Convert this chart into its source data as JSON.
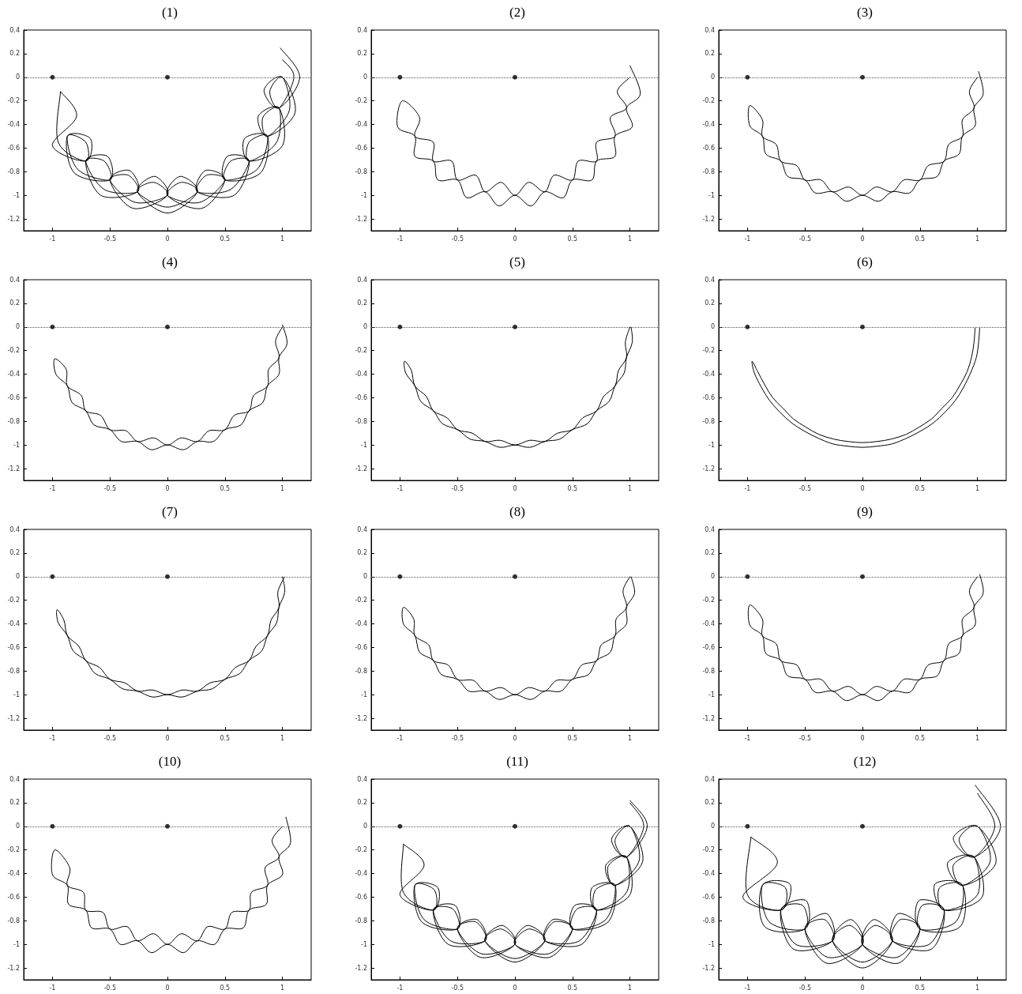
{
  "chart_data": [
    {
      "type": "line",
      "title": "(1)",
      "xlim": [
        -1.25,
        1.25
      ],
      "ylim": [
        -1.3,
        0.4
      ],
      "xticks": [
        -1,
        -0.5,
        0,
        0.5,
        1
      ],
      "yticks": [
        -1.2,
        -1,
        -0.8,
        -0.6,
        -0.4,
        -0.2,
        0,
        0.2,
        0.4
      ],
      "ref_lines": [
        {
          "axis": "y",
          "value": 0,
          "line_style": "dotted",
          "color": "#555555"
        }
      ],
      "series": [
        {
          "color": "#000000",
          "marker": "none",
          "line_style": "solid",
          "x": [
            0.98,
            1.15,
            0.97,
            0.84,
            1,
            1.11,
            0.87,
            0.79,
            0.97,
            1,
            0.71,
            0.67,
            0.87,
            0.81,
            0.5,
            0.52,
            0.71,
            0.58,
            0.26,
            0.33,
            0.5,
            0.3,
            0,
            0.11,
            0.26,
            0,
            -0.26,
            -0.11,
            0,
            -0.3,
            -0.5,
            -0.33,
            -0.26,
            -0.58,
            -0.71,
            -0.52,
            -0.5,
            -0.81,
            -0.87,
            -0.67,
            -0.71,
            -1,
            -0.79,
            -0.93
          ],
          "values": [
            0.25,
            0,
            -0.26,
            -0.11,
            0,
            -0.3,
            -0.5,
            -0.33,
            -0.26,
            -0.58,
            -0.71,
            -0.52,
            -0.5,
            -0.81,
            -0.87,
            -0.67,
            -0.71,
            -1,
            -0.97,
            -0.79,
            -0.87,
            -1.11,
            -1,
            -0.84,
            -0.97,
            -1.15,
            -0.97,
            -0.84,
            -1,
            -1.11,
            -0.87,
            -0.79,
            -0.97,
            -1,
            -0.71,
            -0.67,
            -0.87,
            -0.81,
            -0.5,
            -0.52,
            -0.71,
            -0.58,
            -0.33,
            -0.12
          ]
        },
        {
          "color": "#000000",
          "marker": "none",
          "line_style": "solid",
          "x": [
            -0.93,
            -0.95,
            -0.71,
            -0.71,
            -0.87,
            -0.78,
            -0.5,
            -0.55,
            -0.71,
            -0.55,
            -0.26,
            -0.34,
            -0.5,
            -0.28,
            0,
            -0.12,
            -0.26,
            0,
            0.26,
            0.12,
            0,
            0.28,
            0.5,
            0.34,
            0.26,
            0.55,
            0.71,
            0.55,
            0.5,
            0.78,
            0.87,
            0.71,
            0.71,
            0.95,
            0.97,
            0.83,
            0.87,
            1.06,
            1,
            0.89,
            0.97,
            1.1,
            1.0
          ],
          "values": [
            -0.12,
            -0.55,
            -0.71,
            -0.55,
            -0.5,
            -0.78,
            -0.87,
            -0.71,
            -0.71,
            -0.95,
            -0.97,
            -0.83,
            -0.87,
            -1.06,
            -1,
            -0.89,
            -0.97,
            -1.1,
            -0.97,
            -0.89,
            -1,
            -1.06,
            -0.87,
            -0.83,
            -0.97,
            -0.95,
            -0.71,
            -0.71,
            -0.87,
            -0.78,
            -0.5,
            -0.55,
            -0.71,
            -0.55,
            -0.26,
            -0.34,
            -0.5,
            -0.28,
            0,
            -0.12,
            -0.26,
            0,
            0.15
          ]
        },
        {
          "type": "scatter",
          "color": "#000000",
          "marker": "circle",
          "x": [
            -1,
            0
          ],
          "values": [
            0,
            0
          ]
        }
      ]
    },
    {
      "type": "line",
      "title": "(2)",
      "xlim": [
        -1.25,
        1.25
      ],
      "ylim": [
        -1.3,
        0.4
      ],
      "xticks": [
        -1,
        -0.5,
        0,
        0.5,
        1
      ],
      "yticks": [
        -1.2,
        -1,
        -0.8,
        -0.6,
        -0.4,
        -0.2,
        0,
        0.2,
        0.4
      ],
      "ref_lines": [
        {
          "axis": "y",
          "value": 0,
          "line_style": "dotted",
          "color": "#555555"
        }
      ],
      "series": [
        {
          "color": "#000000",
          "marker": "none",
          "line_style": "solid",
          "x": [
            1.0,
            1.09,
            0.97,
            1.02,
            0.87,
            0.87,
            0.71,
            0.67,
            0.5,
            0.42,
            0.26,
            0.14,
            0,
            -0.14,
            -0.26,
            -0.42,
            -0.5,
            -0.67,
            -0.71,
            -0.87,
            -0.87,
            -1.02,
            -0.98,
            -0.83,
            -0.87,
            -0.71,
            -0.71,
            -0.55,
            -0.5,
            -0.34,
            -0.26,
            -0.12,
            0,
            0.12,
            0.26,
            0.34,
            0.5,
            0.55,
            0.71,
            0.71,
            0.87,
            0.83,
            0.97,
            0.89,
            1
          ],
          "values": [
            0.1,
            -0.14,
            -0.26,
            -0.42,
            -0.5,
            -0.67,
            -0.71,
            -0.87,
            -0.87,
            -1.02,
            -0.97,
            -1.09,
            -1,
            -1.09,
            -0.97,
            -1.02,
            -0.87,
            -0.87,
            -0.71,
            -0.67,
            -0.5,
            -0.42,
            -0.2,
            -0.34,
            -0.5,
            -0.55,
            -0.71,
            -0.71,
            -0.87,
            -0.83,
            -0.97,
            -0.89,
            -1,
            -0.89,
            -0.97,
            -0.83,
            -0.87,
            -0.71,
            -0.71,
            -0.55,
            -0.5,
            -0.34,
            -0.26,
            -0.12,
            0
          ]
        },
        {
          "type": "scatter",
          "color": "#000000",
          "marker": "circle",
          "x": [
            -1,
            0
          ],
          "values": [
            0,
            0
          ]
        }
      ]
    },
    {
      "type": "line",
      "title": "(3)",
      "xlim": [
        -1.25,
        1.25
      ],
      "ylim": [
        -1.3,
        0.4
      ],
      "xticks": [
        -1,
        -0.5,
        0,
        0.5,
        1
      ],
      "yticks": [
        -1.2,
        -1,
        -0.8,
        -0.6,
        -0.4,
        -0.2,
        0,
        0.2,
        0.4
      ],
      "ref_lines": [
        {
          "axis": "y",
          "value": 0,
          "line_style": "dotted",
          "color": "#555555"
        }
      ],
      "series": [
        {
          "color": "#000000",
          "marker": "none",
          "line_style": "solid",
          "x": [
            1.01,
            1.05,
            0.97,
            0.98,
            0.87,
            0.84,
            0.71,
            0.65,
            0.5,
            0.41,
            0.26,
            0.14,
            0,
            -0.14,
            -0.26,
            -0.41,
            -0.5,
            -0.65,
            -0.71,
            -0.84,
            -0.87,
            -0.98,
            -0.98,
            -0.87,
            -0.87,
            -0.75,
            -0.71,
            -0.57,
            -0.5,
            -0.36,
            -0.26,
            -0.12,
            0,
            0.12,
            0.26,
            0.36,
            0.5,
            0.57,
            0.71,
            0.75,
            0.87,
            0.87,
            0.97,
            0.93,
            1
          ],
          "values": [
            0.05,
            -0.14,
            -0.26,
            -0.41,
            -0.5,
            -0.65,
            -0.71,
            -0.84,
            -0.87,
            -0.98,
            -0.97,
            -1.05,
            -1,
            -1.05,
            -0.97,
            -0.98,
            -0.87,
            -0.84,
            -0.71,
            -0.65,
            -0.5,
            -0.41,
            -0.24,
            -0.36,
            -0.5,
            -0.57,
            -0.71,
            -0.75,
            -0.87,
            -0.87,
            -0.97,
            -0.93,
            -1,
            -0.93,
            -0.97,
            -0.87,
            -0.87,
            -0.75,
            -0.71,
            -0.57,
            -0.5,
            -0.36,
            -0.26,
            -0.12,
            0
          ]
        },
        {
          "type": "scatter",
          "color": "#000000",
          "marker": "circle",
          "x": [
            -1,
            0
          ],
          "values": [
            0,
            0
          ]
        }
      ]
    },
    {
      "type": "line",
      "title": "(4)",
      "xlim": [
        -1.25,
        1.25
      ],
      "ylim": [
        -1.3,
        0.4
      ],
      "xticks": [
        -1,
        -0.5,
        0,
        0.5,
        1
      ],
      "yticks": [
        -1.2,
        -1,
        -0.8,
        -0.6,
        -0.4,
        -0.2,
        0,
        0.2,
        0.4
      ],
      "ref_lines": [
        {
          "axis": "y",
          "value": 0,
          "line_style": "dotted",
          "color": "#555555"
        }
      ],
      "series": [
        {
          "color": "#000000",
          "marker": "none",
          "line_style": "solid",
          "x": [
            1.0,
            1.04,
            0.97,
            0.97,
            0.87,
            0.83,
            0.71,
            0.64,
            0.5,
            0.4,
            0.26,
            0.14,
            0,
            -0.14,
            -0.26,
            -0.4,
            -0.5,
            -0.64,
            -0.71,
            -0.83,
            -0.87,
            -0.97,
            -0.98,
            -0.88,
            -0.87,
            -0.75,
            -0.71,
            -0.58,
            -0.5,
            -0.36,
            -0.26,
            -0.12,
            0,
            0.12,
            0.26,
            0.36,
            0.5,
            0.58,
            0.71,
            0.75,
            0.87,
            0.88,
            0.97,
            0.94,
            1
          ],
          "values": [
            0.02,
            -0.14,
            -0.26,
            -0.4,
            -0.5,
            -0.64,
            -0.71,
            -0.83,
            -0.87,
            -0.97,
            -0.97,
            -1.04,
            -1,
            -1.04,
            -0.97,
            -0.97,
            -0.87,
            -0.83,
            -0.71,
            -0.64,
            -0.5,
            -0.4,
            -0.27,
            -0.36,
            -0.5,
            -0.58,
            -0.71,
            -0.75,
            -0.87,
            -0.88,
            -0.97,
            -0.94,
            -1,
            -0.94,
            -0.97,
            -0.88,
            -0.87,
            -0.75,
            -0.71,
            -0.58,
            -0.5,
            -0.36,
            -0.26,
            -0.12,
            0
          ]
        },
        {
          "type": "scatter",
          "color": "#000000",
          "marker": "circle",
          "x": [
            -1,
            0
          ],
          "values": [
            0,
            0
          ]
        }
      ]
    },
    {
      "type": "line",
      "title": "(5)",
      "xlim": [
        -1.25,
        1.25
      ],
      "ylim": [
        -1.3,
        0.4
      ],
      "xticks": [
        -1,
        -0.5,
        0,
        0.5,
        1
      ],
      "yticks": [
        -1.2,
        -1,
        -0.8,
        -0.6,
        -0.4,
        -0.2,
        0,
        0.2,
        0.4
      ],
      "ref_lines": [
        {
          "axis": "y",
          "value": 0,
          "line_style": "dotted",
          "color": "#555555"
        }
      ],
      "series": [
        {
          "color": "#000000",
          "marker": "none",
          "line_style": "solid",
          "x": [
            1.01,
            1.02,
            0.97,
            0.95,
            0.87,
            0.82,
            0.71,
            0.63,
            0.5,
            0.39,
            0.26,
            0.13,
            0,
            -0.13,
            -0.26,
            -0.39,
            -0.5,
            -0.63,
            -0.71,
            -0.82,
            -0.87,
            -0.95,
            -0.96,
            -0.9,
            -0.87,
            -0.77,
            -0.71,
            -0.59,
            -0.5,
            -0.37,
            -0.26,
            -0.13,
            0,
            0.13,
            0.26,
            0.37,
            0.5,
            0.59,
            0.71,
            0.77,
            0.87,
            0.9,
            0.97,
            0.96,
            1
          ],
          "values": [
            0,
            -0.13,
            -0.26,
            -0.39,
            -0.5,
            -0.63,
            -0.71,
            -0.82,
            -0.87,
            -0.95,
            -0.97,
            -1.02,
            -1,
            -1.02,
            -0.97,
            -0.95,
            -0.87,
            -0.82,
            -0.71,
            -0.63,
            -0.5,
            -0.39,
            -0.29,
            -0.37,
            -0.5,
            -0.59,
            -0.71,
            -0.77,
            -0.87,
            -0.9,
            -0.97,
            -0.96,
            -1,
            -0.96,
            -0.97,
            -0.9,
            -0.87,
            -0.77,
            -0.71,
            -0.59,
            -0.5,
            -0.37,
            -0.26,
            -0.13,
            0
          ]
        },
        {
          "type": "scatter",
          "color": "#000000",
          "marker": "circle",
          "x": [
            -1,
            0
          ],
          "values": [
            0,
            0
          ]
        }
      ]
    },
    {
      "type": "line",
      "title": "(6)",
      "xlim": [
        -1.25,
        1.25
      ],
      "ylim": [
        -1.3,
        0.4
      ],
      "xticks": [
        -1,
        -0.5,
        0,
        0.5,
        1
      ],
      "yticks": [
        -1.2,
        -1,
        -0.8,
        -0.6,
        -0.4,
        -0.2,
        0,
        0.2,
        0.4
      ],
      "ref_lines": [
        {
          "axis": "y",
          "value": 0,
          "line_style": "dotted",
          "color": "#555555"
        }
      ],
      "series": [
        {
          "color": "#000000",
          "marker": "none",
          "line_style": "solid",
          "x": [
            0.98,
            0.97,
            0.95,
            0.91,
            0.85,
            0.78,
            0.69,
            0.6,
            0.49,
            0.38,
            0.25,
            0.13,
            0,
            -0.13,
            -0.25,
            -0.38,
            -0.49,
            -0.6,
            -0.69,
            -0.78,
            -0.85,
            -0.91,
            -0.96,
            -0.94,
            -0.88,
            -0.81,
            -0.72,
            -0.62,
            -0.51,
            -0.39,
            -0.26,
            -0.13,
            0,
            0.13,
            0.26,
            0.39,
            0.51,
            0.62,
            0.72,
            0.81,
            0.88,
            0.94,
            0.99,
            1.01,
            1.02
          ],
          "values": [
            0,
            -0.13,
            -0.25,
            -0.38,
            -0.49,
            -0.6,
            -0.69,
            -0.78,
            -0.85,
            -0.91,
            -0.95,
            -0.97,
            -0.98,
            -0.97,
            -0.95,
            -0.91,
            -0.85,
            -0.78,
            -0.69,
            -0.6,
            -0.49,
            -0.38,
            -0.29,
            -0.39,
            -0.51,
            -0.62,
            -0.72,
            -0.81,
            -0.88,
            -0.94,
            -0.99,
            -1.01,
            -1.02,
            -1.01,
            -0.99,
            -0.94,
            -0.88,
            -0.81,
            -0.72,
            -0.62,
            -0.51,
            -0.39,
            -0.26,
            -0.13,
            0
          ]
        },
        {
          "type": "scatter",
          "color": "#000000",
          "marker": "circle",
          "x": [
            -1,
            0
          ],
          "values": [
            0,
            0
          ]
        }
      ]
    },
    {
      "type": "line",
      "title": "(7)",
      "xlim": [
        -1.25,
        1.25
      ],
      "ylim": [
        -1.3,
        0.4
      ],
      "xticks": [
        -1,
        -0.5,
        0,
        0.5,
        1
      ],
      "yticks": [
        -1.2,
        -1,
        -0.8,
        -0.6,
        -0.4,
        -0.2,
        0,
        0.2,
        0.4
      ],
      "ref_lines": [
        {
          "axis": "y",
          "value": 0,
          "line_style": "dotted",
          "color": "#555555"
        }
      ],
      "series": [
        {
          "color": "#000000",
          "marker": "none",
          "line_style": "solid",
          "x": [
            1.02,
            0.96,
            0.97,
            0.9,
            0.87,
            0.77,
            0.71,
            0.59,
            0.5,
            0.37,
            0.26,
            0.13,
            0,
            -0.13,
            -0.26,
            -0.37,
            -0.5,
            -0.59,
            -0.71,
            -0.77,
            -0.87,
            -0.9,
            -0.96,
            -0.95,
            -0.87,
            -0.82,
            -0.71,
            -0.63,
            -0.5,
            -0.39,
            -0.26,
            -0.13,
            0,
            0.13,
            0.26,
            0.39,
            0.5,
            0.63,
            0.71,
            0.82,
            0.87,
            0.95,
            0.97,
            1.02,
            1
          ],
          "values": [
            0,
            -0.13,
            -0.26,
            -0.37,
            -0.5,
            -0.59,
            -0.71,
            -0.77,
            -0.87,
            -0.9,
            -0.97,
            -0.96,
            -1,
            -0.96,
            -0.97,
            -0.9,
            -0.87,
            -0.77,
            -0.71,
            -0.59,
            -0.5,
            -0.37,
            -0.28,
            -0.39,
            -0.5,
            -0.63,
            -0.71,
            -0.82,
            -0.87,
            -0.95,
            -0.97,
            -1.02,
            -1,
            -1.02,
            -0.97,
            -0.95,
            -0.87,
            -0.82,
            -0.71,
            -0.63,
            -0.5,
            -0.39,
            -0.26,
            -0.13,
            0
          ]
        },
        {
          "type": "scatter",
          "color": "#000000",
          "marker": "circle",
          "x": [
            -1,
            0
          ],
          "values": [
            0,
            0
          ]
        }
      ]
    },
    {
      "type": "line",
      "title": "(8)",
      "xlim": [
        -1.25,
        1.25
      ],
      "ylim": [
        -1.3,
        0.4
      ],
      "xticks": [
        -1,
        -0.5,
        0,
        0.5,
        1
      ],
      "yticks": [
        -1.2,
        -1,
        -0.8,
        -0.6,
        -0.4,
        -0.2,
        0,
        0.2,
        0.4
      ],
      "ref_lines": [
        {
          "axis": "y",
          "value": 0,
          "line_style": "dotted",
          "color": "#555555"
        }
      ],
      "series": [
        {
          "color": "#000000",
          "marker": "none",
          "line_style": "solid",
          "x": [
            1.01,
            1.04,
            0.97,
            0.97,
            0.87,
            0.83,
            0.71,
            0.64,
            0.5,
            0.4,
            0.26,
            0.14,
            0,
            -0.14,
            -0.26,
            -0.4,
            -0.5,
            -0.64,
            -0.71,
            -0.83,
            -0.87,
            -0.97,
            -0.97,
            -0.88,
            -0.87,
            -0.75,
            -0.71,
            -0.58,
            -0.5,
            -0.36,
            -0.26,
            -0.12,
            0,
            0.12,
            0.26,
            0.36,
            0.5,
            0.58,
            0.71,
            0.75,
            0.87,
            0.88,
            0.97,
            0.94,
            1
          ],
          "values": [
            0,
            -0.14,
            -0.26,
            -0.4,
            -0.5,
            -0.64,
            -0.71,
            -0.83,
            -0.87,
            -0.97,
            -0.97,
            -1.04,
            -1,
            -1.04,
            -0.97,
            -0.97,
            -0.87,
            -0.83,
            -0.71,
            -0.64,
            -0.5,
            -0.4,
            -0.26,
            -0.36,
            -0.5,
            -0.58,
            -0.71,
            -0.75,
            -0.87,
            -0.88,
            -0.97,
            -0.94,
            -1,
            -0.94,
            -0.97,
            -0.88,
            -0.87,
            -0.75,
            -0.71,
            -0.58,
            -0.5,
            -0.36,
            -0.26,
            -0.12,
            0
          ]
        },
        {
          "type": "scatter",
          "color": "#000000",
          "marker": "circle",
          "x": [
            -1,
            0
          ],
          "values": [
            0,
            0
          ]
        }
      ]
    },
    {
      "type": "line",
      "title": "(9)",
      "xlim": [
        -1.25,
        1.25
      ],
      "ylim": [
        -1.3,
        0.4
      ],
      "xticks": [
        -1,
        -0.5,
        0,
        0.5,
        1
      ],
      "yticks": [
        -1.2,
        -1,
        -0.8,
        -0.6,
        -0.4,
        -0.2,
        0,
        0.2,
        0.4
      ],
      "ref_lines": [
        {
          "axis": "y",
          "value": 0,
          "line_style": "dotted",
          "color": "#555555"
        }
      ],
      "series": [
        {
          "color": "#000000",
          "marker": "none",
          "line_style": "solid",
          "x": [
            1.02,
            1.05,
            0.97,
            0.98,
            0.87,
            0.84,
            0.71,
            0.65,
            0.5,
            0.41,
            0.26,
            0.14,
            0,
            -0.14,
            -0.26,
            -0.41,
            -0.5,
            -0.65,
            -0.71,
            -0.84,
            -0.87,
            -0.98,
            -0.98,
            -0.87,
            -0.87,
            -0.75,
            -0.71,
            -0.57,
            -0.5,
            -0.36,
            -0.26,
            -0.12,
            0,
            0.12,
            0.26,
            0.36,
            0.5,
            0.57,
            0.71,
            0.75,
            0.87,
            0.87,
            0.97,
            0.93,
            1
          ],
          "values": [
            0.02,
            -0.14,
            -0.26,
            -0.41,
            -0.5,
            -0.65,
            -0.71,
            -0.84,
            -0.87,
            -0.98,
            -0.97,
            -1.05,
            -1,
            -1.05,
            -0.97,
            -0.98,
            -0.87,
            -0.84,
            -0.71,
            -0.65,
            -0.5,
            -0.41,
            -0.24,
            -0.36,
            -0.5,
            -0.57,
            -0.71,
            -0.75,
            -0.87,
            -0.87,
            -0.97,
            -0.93,
            -1,
            -0.93,
            -0.97,
            -0.87,
            -0.87,
            -0.75,
            -0.71,
            -0.57,
            -0.5,
            -0.36,
            -0.26,
            -0.12,
            0
          ]
        },
        {
          "type": "scatter",
          "color": "#000000",
          "marker": "circle",
          "x": [
            -1,
            0
          ],
          "values": [
            0,
            0
          ]
        }
      ]
    },
    {
      "type": "line",
      "title": "(10)",
      "xlim": [
        -1.25,
        1.25
      ],
      "ylim": [
        -1.3,
        0.4
      ],
      "xticks": [
        -1,
        -0.5,
        0,
        0.5,
        1
      ],
      "yticks": [
        -1.2,
        -1,
        -0.8,
        -0.6,
        -0.4,
        -0.2,
        0,
        0.2,
        0.4
      ],
      "ref_lines": [
        {
          "axis": "y",
          "value": 0,
          "line_style": "dotted",
          "color": "#555555"
        }
      ],
      "series": [
        {
          "color": "#000000",
          "marker": "none",
          "line_style": "solid",
          "x": [
            1.03,
            1.07,
            0.97,
            1.0,
            0.87,
            0.86,
            0.71,
            0.66,
            0.5,
            0.41,
            0.26,
            0.14,
            0,
            -0.14,
            -0.26,
            -0.41,
            -0.5,
            -0.66,
            -0.71,
            -0.86,
            -0.87,
            -1.0,
            -0.98,
            -0.85,
            -0.87,
            -0.73,
            -0.71,
            -0.56,
            -0.5,
            -0.35,
            -0.26,
            -0.12,
            0,
            0.12,
            0.26,
            0.35,
            0.5,
            0.56,
            0.71,
            0.73,
            0.87,
            0.85,
            0.97,
            0.91,
            1
          ],
          "values": [
            0.08,
            -0.14,
            -0.26,
            -0.41,
            -0.5,
            -0.66,
            -0.71,
            -0.86,
            -0.87,
            -1.0,
            -0.97,
            -1.07,
            -1,
            -1.07,
            -0.97,
            -1.0,
            -0.87,
            -0.86,
            -0.71,
            -0.66,
            -0.5,
            -0.41,
            -0.2,
            -0.35,
            -0.5,
            -0.56,
            -0.71,
            -0.73,
            -0.87,
            -0.85,
            -0.97,
            -0.91,
            -1,
            -0.91,
            -0.97,
            -0.85,
            -0.87,
            -0.73,
            -0.71,
            -0.56,
            -0.5,
            -0.35,
            -0.26,
            -0.12,
            0
          ]
        },
        {
          "type": "scatter",
          "color": "#000000",
          "marker": "circle",
          "x": [
            -1,
            0
          ],
          "values": [
            0,
            0
          ]
        }
      ]
    },
    {
      "type": "line",
      "title": "(11)",
      "xlim": [
        -1.25,
        1.25
      ],
      "ylim": [
        -1.3,
        0.4
      ],
      "xticks": [
        -1,
        -0.5,
        0,
        0.5,
        1
      ],
      "yticks": [
        -1.2,
        -1,
        -0.8,
        -0.6,
        -0.4,
        -0.2,
        0,
        0.2,
        0.4
      ],
      "ref_lines": [
        {
          "axis": "y",
          "value": 0,
          "line_style": "dotted",
          "color": "#555555"
        }
      ],
      "series": [
        {
          "color": "#000000",
          "marker": "none",
          "line_style": "solid",
          "x": [
            1.0,
            1.15,
            0.97,
            0.84,
            1,
            1.11,
            0.87,
            0.79,
            0.97,
            1,
            0.71,
            0.67,
            0.87,
            0.81,
            0.5,
            0.52,
            0.71,
            0.58,
            0.26,
            0.33,
            0.5,
            0.3,
            0,
            0.11,
            0.26,
            0,
            -0.26,
            -0.11,
            0,
            -0.3,
            -0.5,
            -0.33,
            -0.26,
            -0.58,
            -0.71,
            -0.52,
            -0.5,
            -0.81,
            -0.87,
            -0.67,
            -0.71,
            -1,
            -0.79,
            -0.97
          ],
          "values": [
            0.22,
            0,
            -0.26,
            -0.11,
            0,
            -0.3,
            -0.5,
            -0.33,
            -0.26,
            -0.58,
            -0.71,
            -0.52,
            -0.5,
            -0.81,
            -0.87,
            -0.67,
            -0.71,
            -1,
            -0.97,
            -0.79,
            -0.87,
            -1.11,
            -1,
            -0.84,
            -0.97,
            -1.15,
            -0.97,
            -0.84,
            -1,
            -1.11,
            -0.87,
            -0.79,
            -0.97,
            -1,
            -0.71,
            -0.67,
            -0.87,
            -0.81,
            -0.5,
            -0.52,
            -0.71,
            -0.58,
            -0.33,
            -0.15
          ]
        },
        {
          "color": "#000000",
          "marker": "none",
          "line_style": "solid",
          "x": [
            -0.97,
            -0.97,
            -0.71,
            -0.7,
            -0.87,
            -0.79,
            -0.5,
            -0.54,
            -0.71,
            -0.56,
            -0.26,
            -0.34,
            -0.5,
            -0.29,
            0,
            -0.12,
            -0.26,
            0,
            0.26,
            0.12,
            0,
            0.29,
            0.5,
            0.34,
            0.26,
            0.56,
            0.71,
            0.54,
            0.5,
            0.79,
            0.87,
            0.7,
            0.71,
            0.97,
            0.97,
            0.81,
            0.87,
            1.08,
            1,
            0.87,
            0.97,
            1.12,
            1.0
          ],
          "values": [
            -0.15,
            -0.56,
            -0.71,
            -0.54,
            -0.5,
            -0.79,
            -0.87,
            -0.7,
            -0.71,
            -0.97,
            -0.97,
            -0.81,
            -0.87,
            -1.08,
            -1,
            -0.87,
            -0.97,
            -1.12,
            -0.97,
            -0.87,
            -1,
            -1.08,
            -0.87,
            -0.81,
            -0.97,
            -0.97,
            -0.71,
            -0.7,
            -0.87,
            -0.79,
            -0.5,
            -0.54,
            -0.71,
            -0.56,
            -0.26,
            -0.34,
            -0.5,
            -0.29,
            0,
            -0.12,
            -0.26,
            0,
            0.2
          ]
        },
        {
          "type": "scatter",
          "color": "#000000",
          "marker": "circle",
          "x": [
            -1,
            0
          ],
          "values": [
            0,
            0
          ]
        }
      ]
    },
    {
      "type": "line",
      "title": "(12)",
      "xlim": [
        -1.25,
        1.25
      ],
      "ylim": [
        -1.3,
        0.4
      ],
      "xticks": [
        -1,
        -0.5,
        0,
        0.5,
        1
      ],
      "yticks": [
        -1.2,
        -1,
        -0.8,
        -0.6,
        -0.4,
        -0.2,
        0,
        0.2,
        0.4
      ],
      "ref_lines": [
        {
          "axis": "y",
          "value": 0,
          "line_style": "dotted",
          "color": "#555555"
        }
      ],
      "series": [
        {
          "color": "#000000",
          "marker": "none",
          "line_style": "solid",
          "x": [
            0.98,
            1.2,
            0.97,
            0.79,
            1,
            1.16,
            0.87,
            0.74,
            0.97,
            1.04,
            0.71,
            0.63,
            0.87,
            0.85,
            0.5,
            0.49,
            0.71,
            0.6,
            0.26,
            0.31,
            0.5,
            0.31,
            0,
            0.1,
            0.26,
            0,
            -0.26,
            -0.1,
            0,
            -0.31,
            -0.5,
            -0.31,
            -0.26,
            -0.6,
            -0.71,
            -0.49,
            -0.5,
            -0.85,
            -0.87,
            -0.63,
            -0.71,
            -1.04,
            -0.74,
            -0.97
          ],
          "values": [
            0.35,
            0,
            -0.26,
            -0.1,
            0,
            -0.31,
            -0.5,
            -0.31,
            -0.26,
            -0.6,
            -0.71,
            -0.49,
            -0.5,
            -0.85,
            -0.87,
            -0.63,
            -0.71,
            -1.04,
            -0.97,
            -0.74,
            -0.87,
            -1.16,
            -1,
            -0.79,
            -0.97,
            -1.2,
            -0.97,
            -0.79,
            -1,
            -1.16,
            -0.87,
            -0.74,
            -0.97,
            -1.04,
            -0.71,
            -0.63,
            -0.87,
            -0.85,
            -0.5,
            -0.49,
            -0.71,
            -0.6,
            -0.31,
            -0.09
          ]
        },
        {
          "color": "#000000",
          "marker": "none",
          "line_style": "solid",
          "x": [
            -0.97,
            -1.0,
            -0.71,
            -0.67,
            -0.87,
            -0.81,
            -0.5,
            -0.52,
            -0.71,
            -0.58,
            -0.26,
            -0.33,
            -0.5,
            -0.3,
            0,
            -0.11,
            -0.26,
            0,
            0.26,
            0.11,
            0,
            0.3,
            0.5,
            0.33,
            0.26,
            0.58,
            0.71,
            0.52,
            0.5,
            0.81,
            0.87,
            0.67,
            0.71,
            1.0,
            0.97,
            0.79,
            0.87,
            1.11,
            1,
            0.84,
            0.97,
            1.15,
            1.0
          ],
          "values": [
            -0.09,
            -0.58,
            -0.71,
            -0.52,
            -0.5,
            -0.81,
            -0.87,
            -0.67,
            -0.71,
            -1.0,
            -0.97,
            -0.79,
            -0.87,
            -1.11,
            -1,
            -0.84,
            -0.97,
            -1.15,
            -0.97,
            -0.84,
            -1,
            -1.11,
            -0.87,
            -0.79,
            -0.97,
            -1.0,
            -0.71,
            -0.67,
            -0.87,
            -0.81,
            -0.5,
            -0.52,
            -0.71,
            -0.58,
            -0.26,
            -0.33,
            -0.5,
            -0.3,
            0,
            -0.11,
            -0.26,
            0,
            0.28
          ]
        },
        {
          "type": "scatter",
          "color": "#000000",
          "marker": "circle",
          "x": [
            -1,
            0
          ],
          "values": [
            0,
            0
          ]
        }
      ]
    }
  ]
}
